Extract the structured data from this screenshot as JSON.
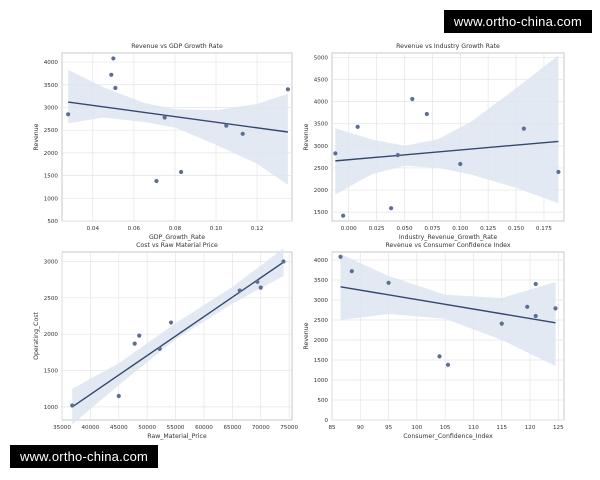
{
  "watermark_top": "www.ortho-china.com",
  "watermark_bottom": "www.ortho-china.com",
  "colors": {
    "point": "#5b6f94",
    "line": "#34486e",
    "band": "#dde5f1",
    "grid": "#e4e4e4",
    "axis": "#bbbbbb",
    "text": "#333333"
  },
  "chart_data": [
    {
      "type": "scatter",
      "title": "Revenue vs GDP Growth Rate",
      "xlabel": "GDP_Growth_Rate",
      "ylabel": "Revenue",
      "xlim": [
        0.025,
        0.137
      ],
      "ylim": [
        500,
        4200
      ],
      "xticks": [
        0.04,
        0.06,
        0.08,
        0.1,
        0.12
      ],
      "xtick_labels": [
        "0.04",
        "0.06",
        "0.08",
        "0.10",
        "0.12"
      ],
      "yticks": [
        500,
        1000,
        1500,
        2000,
        2500,
        3000,
        3500,
        4000
      ],
      "ytick_labels": [
        "500",
        "1000",
        "1500",
        "2000",
        "2500",
        "3000",
        "3500",
        "4000"
      ],
      "points": [
        [
          0.028,
          2850
        ],
        [
          0.049,
          3720
        ],
        [
          0.05,
          4080
        ],
        [
          0.051,
          3430
        ],
        [
          0.071,
          1380
        ],
        [
          0.075,
          2780
        ],
        [
          0.083,
          1580
        ],
        [
          0.105,
          2600
        ],
        [
          0.113,
          2420
        ],
        [
          0.135,
          3400
        ]
      ],
      "fit": [
        [
          0.028,
          3120
        ],
        [
          0.135,
          2460
        ]
      ],
      "band": [
        [
          0.028,
          3830,
          2650
        ],
        [
          0.045,
          3450,
          2780
        ],
        [
          0.065,
          3100,
          2680
        ],
        [
          0.08,
          2960,
          2560
        ],
        [
          0.1,
          2940,
          2180
        ],
        [
          0.12,
          3080,
          1760
        ],
        [
          0.135,
          3300,
          1300
        ]
      ]
    },
    {
      "type": "scatter",
      "title": "Revenue vs Industry Growth Rate",
      "xlabel": "Industry_Revenue_Growth_Rate",
      "ylabel": "Revenue",
      "xlim": [
        -0.015,
        0.193
      ],
      "ylim": [
        1300,
        5100
      ],
      "xticks": [
        0.0,
        0.025,
        0.05,
        0.075,
        0.1,
        0.125,
        0.15,
        0.175
      ],
      "xtick_labels": [
        "0.000",
        "0.025",
        "0.050",
        "0.075",
        "0.100",
        "0.125",
        "0.150",
        "0.175"
      ],
      "yticks": [
        1500,
        2000,
        2500,
        3000,
        3500,
        4000,
        4500,
        5000
      ],
      "ytick_labels": [
        "1500",
        "2000",
        "2500",
        "3000",
        "3500",
        "4000",
        "4500",
        "5000"
      ],
      "points": [
        [
          -0.012,
          2830
        ],
        [
          -0.005,
          1420
        ],
        [
          0.008,
          3430
        ],
        [
          0.038,
          1590
        ],
        [
          0.044,
          2790
        ],
        [
          0.057,
          4060
        ],
        [
          0.07,
          3720
        ],
        [
          0.1,
          2590
        ],
        [
          0.157,
          3390
        ],
        [
          0.188,
          2410
        ]
      ],
      "fit": [
        [
          -0.012,
          2660
        ],
        [
          0.188,
          3100
        ]
      ],
      "band": [
        [
          -0.012,
          3400,
          1900
        ],
        [
          0.02,
          3150,
          2350
        ],
        [
          0.05,
          3000,
          2550
        ],
        [
          0.08,
          3150,
          2500
        ],
        [
          0.11,
          3550,
          2350
        ],
        [
          0.15,
          4300,
          2050
        ],
        [
          0.188,
          5050,
          1700
        ]
      ]
    },
    {
      "type": "scatter",
      "title": "Cost vs Raw Material Price",
      "xlabel": "Raw_Material_Price",
      "ylabel": "Operating_Cost",
      "xlim": [
        35000,
        75500
      ],
      "ylim": [
        820,
        3130
      ],
      "xticks": [
        35000,
        40000,
        45000,
        50000,
        55000,
        60000,
        65000,
        70000,
        75000
      ],
      "xtick_labels": [
        "35000",
        "40000",
        "45000",
        "50000",
        "55000",
        "60000",
        "65000",
        "70000",
        "75000"
      ],
      "yticks": [
        1000,
        1500,
        2000,
        2500,
        3000
      ],
      "ytick_labels": [
        "1000",
        "1500",
        "2000",
        "2500",
        "3000"
      ],
      "points": [
        [
          36800,
          1020
        ],
        [
          45000,
          1150
        ],
        [
          47800,
          1870
        ],
        [
          48600,
          1980
        ],
        [
          52200,
          1800
        ],
        [
          54200,
          2160
        ],
        [
          66300,
          2600
        ],
        [
          69400,
          2720
        ],
        [
          70000,
          2640
        ],
        [
          74000,
          3000
        ]
      ],
      "fit": [
        [
          36800,
          1000
        ],
        [
          74000,
          2990
        ]
      ],
      "band": [
        [
          36800,
          1250,
          760
        ],
        [
          45000,
          1600,
          1300
        ],
        [
          55000,
          2150,
          1930
        ],
        [
          65000,
          2650,
          2420
        ],
        [
          74000,
          3180,
          2800
        ]
      ]
    },
    {
      "type": "scatter",
      "title": "Revenue vs Consumer Confidence Index",
      "xlabel": "Consumer_Confidence_Index",
      "ylabel": "Revenue",
      "xlim": [
        85,
        126
      ],
      "ylim": [
        0,
        4200
      ],
      "xticks": [
        85,
        90,
        95,
        100,
        105,
        110,
        115,
        120,
        125
      ],
      "xtick_labels": [
        "85",
        "90",
        "95",
        "100",
        "105",
        "110",
        "115",
        "120",
        "125"
      ],
      "yticks": [
        0,
        500,
        1000,
        1500,
        2000,
        2500,
        3000,
        3500,
        4000
      ],
      "ytick_labels": [
        "0",
        "500",
        "1000",
        "1500",
        "2000",
        "2500",
        "3000",
        "3500",
        "4000"
      ],
      "points": [
        [
          86.5,
          4080
        ],
        [
          88.5,
          3720
        ],
        [
          95,
          3430
        ],
        [
          104,
          1590
        ],
        [
          105.5,
          1380
        ],
        [
          115,
          2410
        ],
        [
          119.5,
          2830
        ],
        [
          121,
          2600
        ],
        [
          121,
          3400
        ],
        [
          124.5,
          2790
        ]
      ],
      "fit": [
        [
          86.5,
          3330
        ],
        [
          124.5,
          2430
        ]
      ],
      "band": [
        [
          86.5,
          4150,
          2500
        ],
        [
          95,
          3600,
          2650
        ],
        [
          105,
          3130,
          2530
        ],
        [
          115,
          3050,
          2000
        ],
        [
          124.5,
          3450,
          1350
        ]
      ]
    }
  ]
}
